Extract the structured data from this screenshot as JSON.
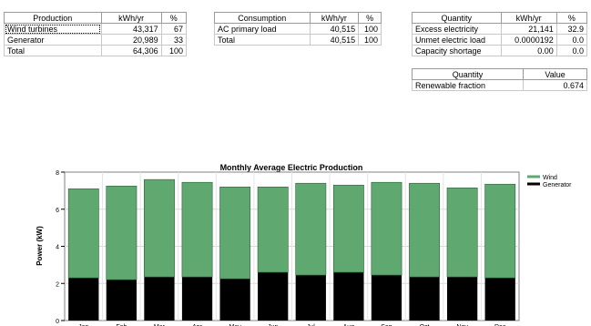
{
  "production": {
    "headers": [
      "Production",
      "kWh/yr",
      "%"
    ],
    "rows": [
      {
        "name": "Wind turbines",
        "kwh": "43,317",
        "pct": "67"
      },
      {
        "name": "Generator",
        "kwh": "20,989",
        "pct": "33"
      },
      {
        "name": "Total",
        "kwh": "64,306",
        "pct": "100"
      }
    ]
  },
  "consumption": {
    "headers": [
      "Consumption",
      "kWh/yr",
      "%"
    ],
    "rows": [
      {
        "name": "AC primary load",
        "kwh": "40,515",
        "pct": "100"
      },
      {
        "name": "Total",
        "kwh": "40,515",
        "pct": "100"
      }
    ]
  },
  "quantity1": {
    "headers": [
      "Quantity",
      "kWh/yr",
      "%"
    ],
    "rows": [
      {
        "name": "Excess electricity",
        "kwh": "21,141",
        "pct": "32.9"
      },
      {
        "name": "Unmet electric load",
        "kwh": "0.0000192",
        "pct": "0.0"
      },
      {
        "name": "Capacity shortage",
        "kwh": "0.00",
        "pct": "0.0"
      }
    ]
  },
  "quantity2": {
    "headers": [
      "Quantity",
      "Value"
    ],
    "rows": [
      {
        "name": "Renewable fraction",
        "value": "0.674"
      }
    ]
  },
  "chart_data": {
    "type": "bar",
    "stacked": true,
    "title": "Monthly Average Electric Production",
    "xlabel": "",
    "ylabel": "Power (kW)",
    "ylim": [
      0,
      8
    ],
    "yticks": [
      0,
      2,
      4,
      6,
      8
    ],
    "grid": true,
    "legend_position": "right",
    "categories": [
      "Jan",
      "Feb",
      "Mar",
      "Apr",
      "May",
      "Jun",
      "Jul",
      "Aug",
      "Sep",
      "Oct",
      "Nov",
      "Dec"
    ],
    "series": [
      {
        "name": "Generator",
        "color": "#000000",
        "values": [
          2.3,
          2.2,
          2.35,
          2.35,
          2.25,
          2.6,
          2.45,
          2.6,
          2.45,
          2.35,
          2.35,
          2.3
        ]
      },
      {
        "name": "Wind",
        "color": "#5fa870",
        "values": [
          4.8,
          5.05,
          5.25,
          5.1,
          4.95,
          4.6,
          4.95,
          4.7,
          5.0,
          5.05,
          4.8,
          5.05
        ]
      }
    ],
    "legend": [
      "Wind",
      "Generator"
    ]
  }
}
